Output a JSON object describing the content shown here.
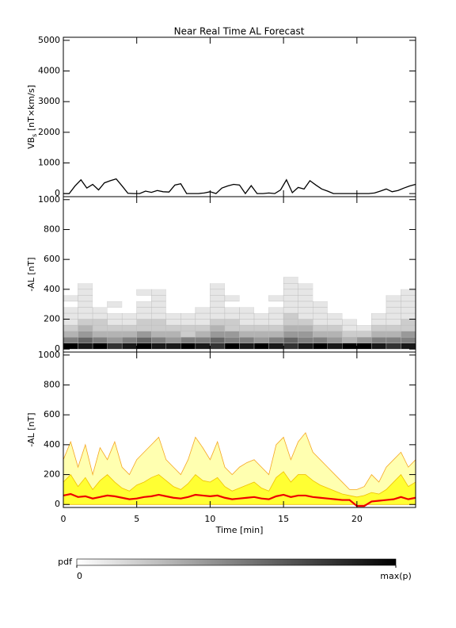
{
  "chart_data": [
    {
      "type": "line",
      "title": "Near Real Time AL Forecast",
      "y_label": {
        "main": "VB",
        "sub": "s",
        "unit": " [nT×km/s]"
      },
      "xlim": [
        0,
        24
      ],
      "ylim": [
        -100,
        5100
      ],
      "yticks": [
        0,
        1000,
        2000,
        3000,
        4000,
        5000
      ],
      "series": [
        {
          "color": "#000000",
          "x": [
            0,
            0.4,
            0.8,
            1.2,
            1.6,
            2,
            2.4,
            2.8,
            3.2,
            3.6,
            4,
            4.4,
            4.8,
            5.2,
            5.6,
            6,
            6.4,
            6.8,
            7.2,
            7.6,
            8,
            8.4,
            8.8,
            9.2,
            9.6,
            10,
            10.4,
            10.8,
            11.2,
            11.6,
            12,
            12.4,
            12.8,
            13.2,
            13.6,
            14,
            14.4,
            14.8,
            15.2,
            15.6,
            16,
            16.4,
            16.8,
            17.2,
            17.6,
            18,
            18.4,
            18.8,
            19.2,
            19.6,
            20,
            20.4,
            20.8,
            21.2,
            21.6,
            22,
            22.4,
            22.8,
            23.2,
            23.6,
            24
          ],
          "values": [
            0,
            0,
            250,
            450,
            180,
            300,
            120,
            350,
            420,
            480,
            250,
            10,
            0,
            0,
            80,
            40,
            100,
            60,
            50,
            280,
            320,
            0,
            0,
            0,
            20,
            60,
            0,
            180,
            250,
            300,
            280,
            0,
            260,
            0,
            0,
            20,
            0,
            120,
            450,
            30,
            200,
            150,
            420,
            280,
            150,
            80,
            0,
            0,
            0,
            0,
            0,
            0,
            0,
            20,
            80,
            150,
            60,
            100,
            180,
            250,
            300
          ]
        }
      ]
    },
    {
      "type": "heatmap",
      "y_label": "-AL [nT]",
      "xlim": [
        0,
        24
      ],
      "ylim": [
        -20,
        1020
      ],
      "yticks": [
        0,
        200,
        400,
        600,
        800,
        1000
      ],
      "x_bins": [
        0,
        1,
        2,
        3,
        4,
        5,
        6,
        7,
        8,
        9,
        10,
        11,
        12,
        13,
        14,
        15,
        16,
        17,
        18,
        19,
        20,
        21,
        22,
        23,
        24
      ],
      "y_bins": [
        0,
        40,
        80,
        120,
        160,
        200,
        240,
        280,
        320,
        360,
        400,
        440,
        480
      ],
      "z": [
        [
          1,
          0.5,
          0.3,
          0.2,
          0.1,
          0.1,
          0.1,
          0,
          0.1,
          0,
          0,
          0
        ],
        [
          0.9,
          0.6,
          0.4,
          0.3,
          0.2,
          0.1,
          0.1,
          0.1,
          0.1,
          0.1,
          0.1,
          0
        ],
        [
          1,
          0.5,
          0.3,
          0.2,
          0.2,
          0.1,
          0.1,
          0,
          0,
          0,
          0,
          0
        ],
        [
          0.8,
          0.4,
          0.3,
          0.2,
          0.1,
          0.1,
          0,
          0.1,
          0,
          0,
          0,
          0
        ],
        [
          0.9,
          0.5,
          0.3,
          0.2,
          0.1,
          0.1,
          0,
          0,
          0,
          0,
          0,
          0
        ],
        [
          1,
          0.6,
          0.4,
          0.2,
          0.2,
          0.1,
          0.1,
          0.1,
          0,
          0.1,
          0,
          0
        ],
        [
          0.9,
          0.5,
          0.3,
          0.2,
          0.2,
          0.1,
          0.1,
          0.1,
          0.1,
          0.1,
          0,
          0
        ],
        [
          0.9,
          0.4,
          0.3,
          0.2,
          0.1,
          0.1,
          0,
          0,
          0,
          0,
          0,
          0
        ],
        [
          1,
          0.5,
          0.2,
          0.2,
          0.1,
          0.1,
          0,
          0,
          0,
          0,
          0,
          0
        ],
        [
          0.9,
          0.5,
          0.3,
          0.2,
          0.1,
          0.1,
          0.1,
          0,
          0,
          0,
          0,
          0
        ],
        [
          0.8,
          0.6,
          0.4,
          0.3,
          0.2,
          0.1,
          0.1,
          0.1,
          0.1,
          0.1,
          0.1,
          0
        ],
        [
          1,
          0.5,
          0.4,
          0.2,
          0.2,
          0.1,
          0.1,
          0,
          0.1,
          0,
          0,
          0
        ],
        [
          0.9,
          0.5,
          0.3,
          0.2,
          0.1,
          0.1,
          0.1,
          0,
          0,
          0,
          0,
          0
        ],
        [
          1,
          0.4,
          0.3,
          0.2,
          0.1,
          0.1,
          0,
          0,
          0,
          0,
          0,
          0
        ],
        [
          0.9,
          0.5,
          0.3,
          0.2,
          0.1,
          0.1,
          0.1,
          0,
          0.1,
          0,
          0,
          0
        ],
        [
          0.8,
          0.6,
          0.4,
          0.3,
          0.2,
          0.2,
          0.1,
          0.1,
          0.1,
          0.1,
          0.1,
          0.1
        ],
        [
          0.9,
          0.5,
          0.4,
          0.3,
          0.2,
          0.1,
          0.1,
          0.1,
          0.1,
          0.1,
          0.1,
          0
        ],
        [
          1,
          0.5,
          0.3,
          0.2,
          0.1,
          0.1,
          0.1,
          0.1,
          0,
          0,
          0,
          0
        ],
        [
          0.9,
          0.4,
          0.3,
          0.2,
          0.1,
          0.1,
          0,
          0,
          0,
          0,
          0,
          0
        ],
        [
          1,
          0.3,
          0.2,
          0.1,
          0.1,
          0,
          0,
          0,
          0,
          0,
          0,
          0
        ],
        [
          1,
          0.4,
          0.2,
          0.1,
          0,
          0,
          0,
          0,
          0,
          0,
          0,
          0
        ],
        [
          0.9,
          0.5,
          0.3,
          0.2,
          0.1,
          0.1,
          0,
          0,
          0,
          0,
          0,
          0
        ],
        [
          0.8,
          0.5,
          0.3,
          0.2,
          0.1,
          0.1,
          0.1,
          0.1,
          0.1,
          0,
          0,
          0
        ],
        [
          0.9,
          0.5,
          0.4,
          0.2,
          0.2,
          0.1,
          0.1,
          0.1,
          0.1,
          0.1,
          0,
          0
        ]
      ],
      "colorbar": {
        "label": "pdf",
        "range": [
          0,
          1
        ],
        "ticks": [
          0,
          {
            "value": 1,
            "label": "max(p)"
          }
        ]
      }
    },
    {
      "type": "area",
      "y_label": "-AL [nT]",
      "x_label": "Time [min]",
      "xlim": [
        0,
        24
      ],
      "ylim": [
        -20,
        1020
      ],
      "yticks": [
        0,
        200,
        400,
        600,
        800,
        1000
      ],
      "xticks": [
        0,
        5,
        10,
        15,
        20
      ],
      "x": [
        0,
        0.5,
        1,
        1.5,
        2,
        2.5,
        3,
        3.5,
        4,
        4.5,
        5,
        5.5,
        6,
        6.5,
        7,
        7.5,
        8,
        8.5,
        9,
        9.5,
        10,
        10.5,
        11,
        11.5,
        12,
        12.5,
        13,
        13.5,
        14,
        14.5,
        15,
        15.5,
        16,
        16.5,
        17,
        17.5,
        18,
        18.5,
        19,
        19.5,
        20,
        20.5,
        21,
        21.5,
        22,
        22.5,
        23,
        23.5,
        24
      ],
      "series": [
        {
          "color": "#ffffb0",
          "stroke": "#f5a623",
          "fill": true,
          "values": [
            300,
            420,
            250,
            400,
            200,
            380,
            300,
            420,
            250,
            200,
            300,
            350,
            400,
            450,
            300,
            250,
            200,
            300,
            450,
            380,
            300,
            420,
            250,
            200,
            250,
            280,
            300,
            250,
            200,
            400,
            450,
            300,
            420,
            480,
            350,
            300,
            250,
            200,
            150,
            100,
            100,
            120,
            200,
            150,
            250,
            300,
            350,
            250,
            300
          ]
        },
        {
          "color": "#ffff33",
          "stroke": "#f0c000",
          "fill": true,
          "values": [
            150,
            200,
            120,
            180,
            100,
            160,
            200,
            150,
            110,
            90,
            130,
            150,
            180,
            200,
            160,
            120,
            100,
            140,
            200,
            160,
            150,
            180,
            120,
            90,
            110,
            130,
            150,
            110,
            90,
            180,
            220,
            150,
            200,
            200,
            160,
            130,
            110,
            90,
            70,
            60,
            50,
            60,
            80,
            70,
            100,
            150,
            200,
            120,
            150
          ]
        },
        {
          "color": "#ee0000",
          "fill": false,
          "values": [
            60,
            70,
            50,
            55,
            40,
            50,
            60,
            55,
            45,
            35,
            40,
            50,
            55,
            65,
            55,
            45,
            40,
            50,
            65,
            60,
            55,
            60,
            45,
            35,
            40,
            45,
            50,
            40,
            35,
            55,
            65,
            50,
            60,
            60,
            50,
            45,
            40,
            35,
            30,
            30,
            -10,
            -10,
            20,
            25,
            30,
            35,
            50,
            35,
            45
          ]
        }
      ]
    }
  ]
}
